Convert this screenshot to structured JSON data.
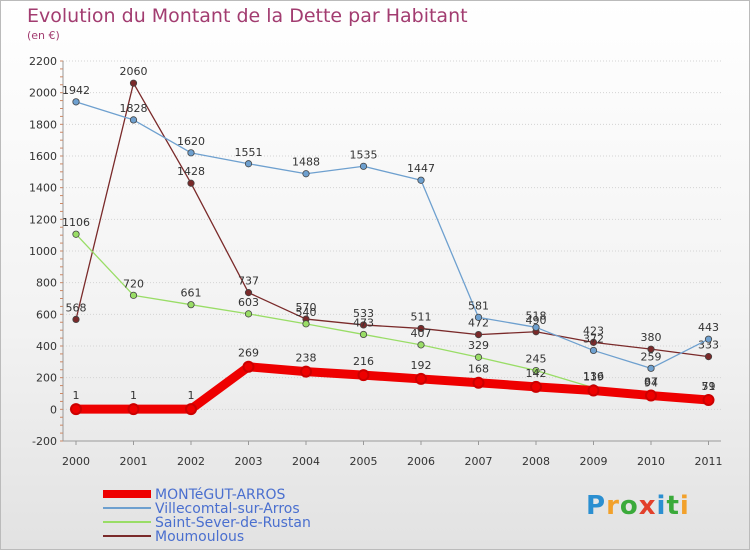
{
  "title": "Evolution du Montant de la Dette par Habitant",
  "subtitle": "(en €)",
  "logo": {
    "letters": [
      "P",
      "r",
      "o",
      "x",
      "i",
      "t",
      "i"
    ],
    "colors": [
      "#2b8fd1",
      "#f2a12b",
      "#3aaa3a",
      "#e2402b",
      "#2b8fd1",
      "#3aaa3a",
      "#f2a12b"
    ]
  },
  "chart_data": {
    "type": "line",
    "title": "Evolution du Montant de la Dette par Habitant",
    "ylabel": "(en €)",
    "xlabel": "",
    "x": [
      "2000",
      "2001",
      "2002",
      "2003",
      "2004",
      "2005",
      "2006",
      "2007",
      "2008",
      "2009",
      "2010",
      "2011"
    ],
    "ylim": [
      -200,
      2200
    ],
    "yticks": [
      -200,
      0,
      200,
      400,
      600,
      800,
      1000,
      1200,
      1400,
      1600,
      1800,
      2000,
      2200
    ],
    "grid": "horizontal",
    "legend_position": "bottom-left",
    "series": [
      {
        "name": "MONTéGUT-ARROS",
        "color": "#ee0000",
        "values": [
          1,
          1,
          1,
          269,
          238,
          216,
          192,
          168,
          142,
          119,
          87,
          59
        ]
      },
      {
        "name": "Villecomtal-sur-Arros",
        "color": "#6ea0cf",
        "values": [
          1942,
          1828,
          1620,
          1551,
          1488,
          1535,
          1447,
          581,
          518,
          372,
          259,
          443
        ]
      },
      {
        "name": "Saint-Sever-de-Rustan",
        "color": "#99dd66",
        "values": [
          1106,
          720,
          661,
          603,
          540,
          473,
          407,
          329,
          245,
          136,
          94,
          71
        ]
      },
      {
        "name": "Moumoulous",
        "color": "#7a2a2a",
        "values": [
          568,
          2060,
          1428,
          737,
          570,
          533,
          511,
          472,
          490,
          423,
          380,
          333
        ]
      }
    ]
  }
}
